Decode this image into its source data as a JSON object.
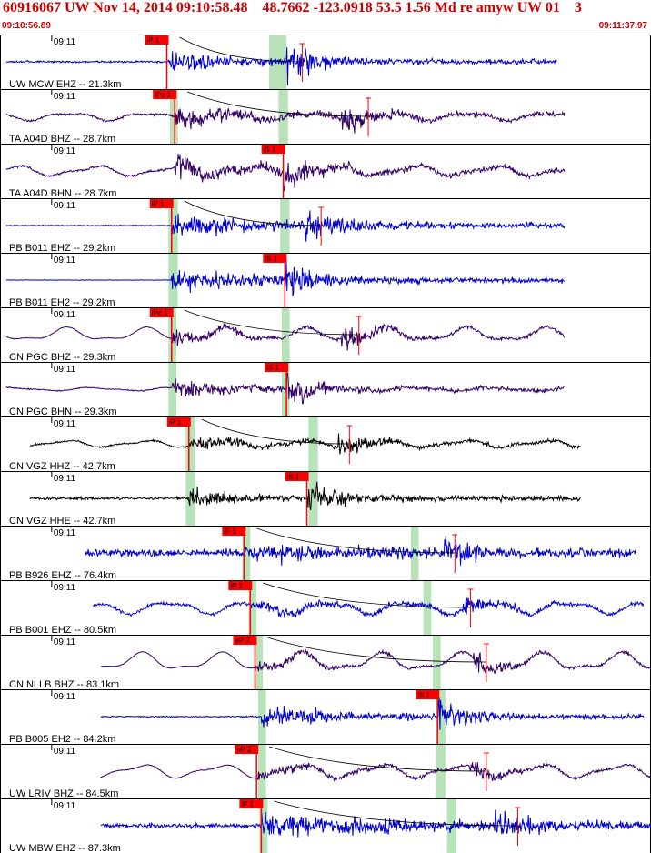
{
  "header": {
    "title": "60916067 UW Nov 14, 2014 09:10:58.48    48.7662 -123.0918 53.5 1.56 Md re amyw UW 01    3",
    "start_time": "09:10:56.89",
    "end_time": "09:11:37.97"
  },
  "colors": {
    "blue": "#0000cc",
    "purple": "#330066",
    "black": "#000000",
    "pick": "#ff0000",
    "window": "#b8e2b8"
  },
  "chart_data": {
    "type": "line",
    "title": "60916067 UW Nov 14, 2014 09:10:58.48    48.7662 -123.0918 53.5 1.56 Md re amyw UW 01    3",
    "x_range": [
      "09:10:56.89",
      "09:11:37.97"
    ],
    "x_unit": "s from 09:10:56.89",
    "x_span_s": 41.08,
    "tick_label": "09:11",
    "tick_time_s": 3.11,
    "traces": [
      {
        "label": "UW MCW EHZ -- 21.3km",
        "color": "blue",
        "start_s": 0.0,
        "end_s": 35.0,
        "pick": {
          "label": "iP 1",
          "t": 10.2
        },
        "green": [
          16.7,
          17.8
        ],
        "onset_s": 10.2,
        "s_arrival_s": 17.8,
        "noise": 0.08,
        "wave": 0.0,
        "amp": 0.9,
        "duration_s": 11.0,
        "period_s": 0.15,
        "coda_end_s": 18.8,
        "seed": 3
      },
      {
        "label": "TA A04D BHZ -- 28.7km",
        "color": "purple",
        "start_s": 0.0,
        "end_s": 35.5,
        "pick": {
          "label": "iPc 1",
          "t": 10.7
        },
        "green": [
          10.4,
          10.9,
          17.3,
          17.9
        ],
        "onset_s": 10.7,
        "s_arrival_s": 21.3,
        "noise": 0.1,
        "wave": 0.35,
        "amp": 0.8,
        "duration_s": 12.0,
        "period_s": 0.2,
        "coda_end_s": 23.0,
        "seed": 5
      },
      {
        "label": "TA A04D BHN -- 28.7km",
        "color": "purple",
        "start_s": 0.0,
        "end_s": 35.5,
        "pick": {
          "label": "iS 1",
          "t": 17.6
        },
        "green": [],
        "onset_s": 10.7,
        "s_arrival_s": 17.6,
        "noise": 0.1,
        "wave": 0.45,
        "amp": 0.85,
        "duration_s": 12.0,
        "period_s": 0.2,
        "coda_end_s": 0,
        "seed": 7
      },
      {
        "label": "PB B011 EHZ -- 29.2km",
        "color": "blue",
        "start_s": 0.0,
        "end_s": 35.5,
        "pick": {
          "label": "iP 1",
          "t": 10.5
        },
        "green": [
          10.3,
          10.9,
          17.4,
          18.0
        ],
        "onset_s": 10.5,
        "s_arrival_s": 19.0,
        "noise": 0.04,
        "wave": 0.0,
        "amp": 0.75,
        "duration_s": 25.0,
        "period_s": 0.12,
        "coda_end_s": 20.0,
        "seed": 11
      },
      {
        "label": "PB B011 EH2 -- 29.2km",
        "color": "blue",
        "start_s": 0.0,
        "end_s": 35.5,
        "pick": {
          "label": "iS 1",
          "t": 17.7
        },
        "green": [
          10.3,
          10.9
        ],
        "onset_s": 10.5,
        "s_arrival_s": 17.7,
        "noise": 0.02,
        "wave": 0.0,
        "amp": 0.95,
        "duration_s": 14.0,
        "period_s": 0.12,
        "coda_end_s": 0,
        "seed": 13
      },
      {
        "label": "CN PGC BHZ -- 29.3km",
        "color": "purple",
        "start_s": 0.0,
        "end_s": 35.5,
        "pick": {
          "label": "iPc 1",
          "t": 10.5
        },
        "green": [
          10.3,
          10.8,
          17.5,
          18.0
        ],
        "onset_s": 10.5,
        "s_arrival_s": 21.3,
        "noise": 0.03,
        "wave": 0.6,
        "amp": 0.6,
        "duration_s": 8.0,
        "period_s": 0.25,
        "coda_end_s": 22.4,
        "seed": 17
      },
      {
        "label": "CN PGC BHN -- 29.3km",
        "color": "purple",
        "start_s": 0.0,
        "end_s": 35.5,
        "pick": {
          "label": "iS 1",
          "t": 17.8
        },
        "green": [
          10.3,
          10.8,
          17.5,
          18.0
        ],
        "onset_s": 10.5,
        "s_arrival_s": 17.8,
        "noise": 0.05,
        "wave": 0.15,
        "amp": 0.75,
        "duration_s": 10.0,
        "period_s": 0.2,
        "coda_end_s": 0,
        "seed": 19
      },
      {
        "label": "CN VGZ HHZ -- 42.7km",
        "color": "black",
        "start_s": 1.5,
        "end_s": 36.5,
        "pick": {
          "label": "iP 1",
          "t": 11.6
        },
        "green": [
          11.4,
          12.0,
          19.2,
          19.8
        ],
        "onset_s": 11.6,
        "s_arrival_s": 21.1,
        "noise": 0.08,
        "wave": 0.3,
        "amp": 0.6,
        "duration_s": 8.0,
        "period_s": 0.1,
        "coda_end_s": 21.8,
        "seed": 23
      },
      {
        "label": "CN VGZ HHE -- 42.7km",
        "color": "black",
        "start_s": 1.5,
        "end_s": 36.5,
        "pick": {
          "label": "iS 1",
          "t": 19.1
        },
        "green": [
          11.4,
          12.0,
          19.2,
          19.8
        ],
        "onset_s": 11.6,
        "s_arrival_s": 19.1,
        "noise": 0.12,
        "wave": 0.0,
        "amp": 0.9,
        "duration_s": 5.0,
        "period_s": 0.1,
        "coda_end_s": 0,
        "seed": 29
      },
      {
        "label": "PB B926 EHZ -- 76.4km",
        "color": "blue",
        "start_s": 5.0,
        "end_s": 40.0,
        "pick": {
          "label": "iP 1",
          "t": 15.1
        },
        "green": [
          15.0,
          15.5,
          25.7,
          26.2
        ],
        "onset_s": 15.1,
        "s_arrival_s": 27.8,
        "noise": 0.35,
        "wave": 0.0,
        "amp": 0.7,
        "duration_s": 20.0,
        "period_s": 0.12,
        "coda_end_s": 28.5,
        "seed": 31
      },
      {
        "label": "PB B001 EHZ -- 80.5km",
        "color": "blue",
        "start_s": 5.5,
        "end_s": 40.5,
        "pick": {
          "label": "iP 1",
          "t": 15.5
        },
        "green": [
          15.4,
          15.9,
          26.5,
          27.0
        ],
        "onset_s": 15.5,
        "s_arrival_s": 29.0,
        "noise": 0.15,
        "wave": 0.55,
        "amp": 0.45,
        "duration_s": 16.0,
        "period_s": 0.1,
        "coda_end_s": 29.5,
        "seed": 37
      },
      {
        "label": "CN NLLB BHZ -- 83.1km",
        "color": "purple",
        "start_s": 6.0,
        "end_s": 41.0,
        "pick": {
          "label": "eP 2",
          "t": 15.8
        },
        "green": [
          15.8,
          16.3,
          27.1,
          27.6
        ],
        "onset_s": 15.8,
        "s_arrival_s": 29.6,
        "noise": 0.02,
        "wave": 0.8,
        "amp": 0.5,
        "duration_s": 8.0,
        "period_s": 0.4,
        "coda_end_s": 30.5,
        "seed": 41
      },
      {
        "label": "PB B005 EH2 -- 84.2km",
        "color": "blue",
        "start_s": 6.0,
        "end_s": 40.5,
        "pick": {
          "label": "iS 1",
          "t": 27.4
        },
        "green": [
          16.0,
          16.5,
          27.3,
          27.9
        ],
        "onset_s": 16.2,
        "s_arrival_s": 27.4,
        "noise": 0.06,
        "wave": 0.0,
        "amp": 0.9,
        "duration_s": 10.0,
        "period_s": 0.12,
        "coda_end_s": 0,
        "seed": 43
      },
      {
        "label": "UW LRIV BHZ -- 84.5km",
        "color": "purple",
        "start_s": 6.0,
        "end_s": 41.0,
        "pick": {
          "label": "eP 2",
          "t": 15.9
        },
        "green": [
          16.0,
          16.5,
          27.3,
          27.9
        ],
        "onset_s": 15.9,
        "s_arrival_s": 29.4,
        "noise": 0.04,
        "wave": 0.6,
        "amp": 0.5,
        "duration_s": 10.0,
        "period_s": 0.35,
        "coda_end_s": 30.5,
        "seed": 47
      },
      {
        "label": "UW MBW EHZ -- 87.3km",
        "color": "blue",
        "start_s": 6.0,
        "end_s": 41.0,
        "pick": {
          "label": "iP 1",
          "t": 16.2
        },
        "green": [
          16.1,
          16.6,
          28.0,
          28.6
        ],
        "onset_s": 16.2,
        "s_arrival_s": 31.0,
        "noise": 0.2,
        "wave": 0.0,
        "amp": 0.9,
        "duration_s": 25.0,
        "period_s": 0.1,
        "coda_end_s": 32.5,
        "seed": 53
      }
    ]
  }
}
